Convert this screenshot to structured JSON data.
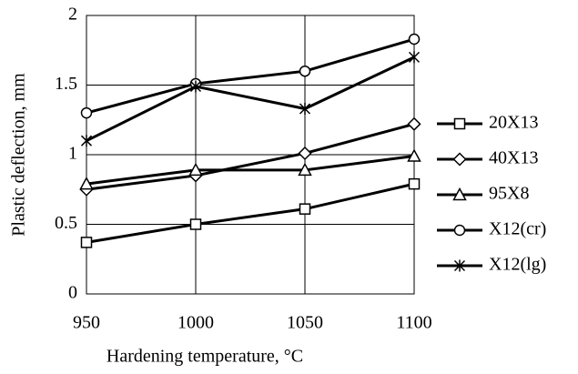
{
  "chart_data": {
    "type": "line",
    "x_label": "Hardening temperature, °C",
    "y_label": "Plastic deflection, mm",
    "x": [
      950,
      1000,
      1050,
      1100
    ],
    "xlim": [
      950,
      1100
    ],
    "xticks": [
      950,
      1000,
      1050,
      1100
    ],
    "ylim": [
      0,
      2
    ],
    "yticks": [
      0,
      0.5,
      1,
      1.5,
      2
    ],
    "grid": true,
    "legend": "right",
    "series": [
      {
        "name": "20X13",
        "color": "#000000",
        "marker": "square",
        "values": [
          0.37,
          0.5,
          0.61,
          0.79
        ]
      },
      {
        "name": "40X13",
        "color": "#000000",
        "marker": "diamond",
        "values": [
          0.75,
          0.85,
          1.01,
          1.22
        ]
      },
      {
        "name": "95X8",
        "color": "#000000",
        "marker": "triangle",
        "values": [
          0.79,
          0.89,
          0.89,
          0.99
        ]
      },
      {
        "name": "X12(cr)",
        "color": "#000000",
        "marker": "circle",
        "values": [
          1.3,
          1.51,
          1.6,
          1.83
        ]
      },
      {
        "name": "X12(lg)",
        "color": "#000000",
        "marker": "star",
        "values": [
          1.1,
          1.49,
          1.33,
          1.7
        ]
      }
    ]
  }
}
